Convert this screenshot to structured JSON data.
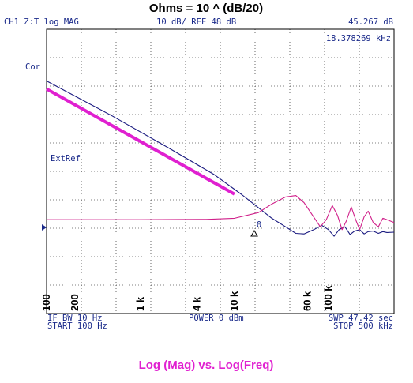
{
  "chart_data": {
    "type": "line",
    "title": "Ohms = 10 ^ (dB/20)",
    "caption": "Log (Mag) vs. Log(Freq)",
    "header": {
      "channel": "CH1 Z:T  log MAG",
      "scale_ref": "10 dB/ REF 48 dB",
      "marker_value": "45.267 dB"
    },
    "marker_freq": "18.378269 kHz",
    "marker_label": "0",
    "labels": {
      "cor": "Cor",
      "extref": "ExtRef"
    },
    "footer": {
      "if_bw": "IF BW 10 Hz",
      "start": "START  100 Hz",
      "power": "POWER  0 dBm",
      "swp": "SWP  47.42 sec",
      "stop": "STOP  500 kHz"
    },
    "x_scale": "log",
    "xlim": [
      100,
      500000
    ],
    "ylim": [
      -2,
      8
    ],
    "y_divisions": 10,
    "x_tick_labels": [
      {
        "label": "100",
        "freq": 100
      },
      {
        "label": "200",
        "freq": 200
      },
      {
        "label": "1 k",
        "freq": 1000
      },
      {
        "label": "4 k",
        "freq": 4000
      },
      {
        "label": "10 k",
        "freq": 10000
      },
      {
        "label": "60 k",
        "freq": 60000
      },
      {
        "label": "100 k",
        "freq": 100000
      }
    ],
    "series": [
      {
        "color": "#1a1a80",
        "points": [
          [
            100,
            6.18
          ],
          [
            500,
            4.95
          ],
          [
            2000,
            3.82
          ],
          [
            6000,
            2.9
          ],
          [
            12000,
            2.18
          ],
          [
            18000,
            1.72
          ],
          [
            25000,
            1.35
          ],
          [
            35000,
            1.05
          ],
          [
            45000,
            0.82
          ],
          [
            55000,
            0.8
          ],
          [
            70000,
            0.95
          ],
          [
            85000,
            1.1
          ],
          [
            100000,
            0.95
          ],
          [
            115000,
            0.72
          ],
          [
            130000,
            0.95
          ],
          [
            150000,
            1.05
          ],
          [
            170000,
            0.78
          ],
          [
            190000,
            0.9
          ],
          [
            215000,
            0.95
          ],
          [
            240000,
            0.8
          ],
          [
            265000,
            0.88
          ],
          [
            300000,
            0.9
          ],
          [
            340000,
            0.82
          ],
          [
            380000,
            0.88
          ],
          [
            420000,
            0.85
          ],
          [
            500000,
            0.86
          ]
        ]
      },
      {
        "color": "#d0208a",
        "points": [
          [
            100,
            1.3
          ],
          [
            1000,
            1.3
          ],
          [
            5000,
            1.31
          ],
          [
            10000,
            1.35
          ],
          [
            18000,
            1.55
          ],
          [
            25000,
            1.85
          ],
          [
            35000,
            2.1
          ],
          [
            45000,
            2.15
          ],
          [
            55000,
            1.9
          ],
          [
            68000,
            1.45
          ],
          [
            82000,
            1.05
          ],
          [
            95000,
            1.3
          ],
          [
            110000,
            1.8
          ],
          [
            125000,
            1.45
          ],
          [
            140000,
            0.95
          ],
          [
            155000,
            1.25
          ],
          [
            175000,
            1.75
          ],
          [
            195000,
            1.3
          ],
          [
            215000,
            0.95
          ],
          [
            240000,
            1.4
          ],
          [
            265000,
            1.6
          ],
          [
            300000,
            1.2
          ],
          [
            340000,
            1.05
          ],
          [
            380000,
            1.35
          ],
          [
            420000,
            1.3
          ],
          [
            500000,
            1.2
          ]
        ]
      },
      {
        "color": "#e020d0",
        "points": [
          [
            100,
            5.9
          ],
          [
            10000,
            2.2
          ]
        ]
      }
    ]
  }
}
